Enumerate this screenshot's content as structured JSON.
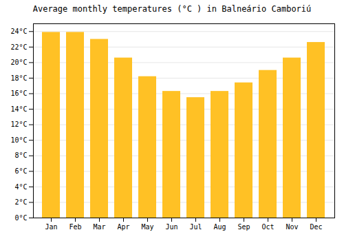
{
  "chart_data": {
    "type": "bar",
    "title": "Average monthly temperatures (°C ) in Balneário Camboriú",
    "categories": [
      "Jan",
      "Feb",
      "Mar",
      "Apr",
      "May",
      "Jun",
      "Jul",
      "Aug",
      "Sep",
      "Oct",
      "Nov",
      "Dec"
    ],
    "values": [
      23.9,
      23.9,
      23.0,
      20.6,
      18.2,
      16.3,
      15.5,
      16.3,
      17.4,
      19.0,
      20.6,
      22.6
    ],
    "color": "#FFC125",
    "ylim": [
      0,
      25
    ],
    "yticks": [
      {
        "value": 0,
        "label": "0°C"
      },
      {
        "value": 2,
        "label": "2°C"
      },
      {
        "value": 4,
        "label": "4°C"
      },
      {
        "value": 6,
        "label": "6°C"
      },
      {
        "value": 8,
        "label": "8°C"
      },
      {
        "value": 10,
        "label": "10°C"
      },
      {
        "value": 12,
        "label": "12°C"
      },
      {
        "value": 14,
        "label": "14°C"
      },
      {
        "value": 16,
        "label": "16°C"
      },
      {
        "value": 18,
        "label": "18°C"
      },
      {
        "value": 20,
        "label": "20°C"
      },
      {
        "value": 22,
        "label": "22°C"
      },
      {
        "value": 24,
        "label": "24°C"
      }
    ],
    "grid": true
  }
}
